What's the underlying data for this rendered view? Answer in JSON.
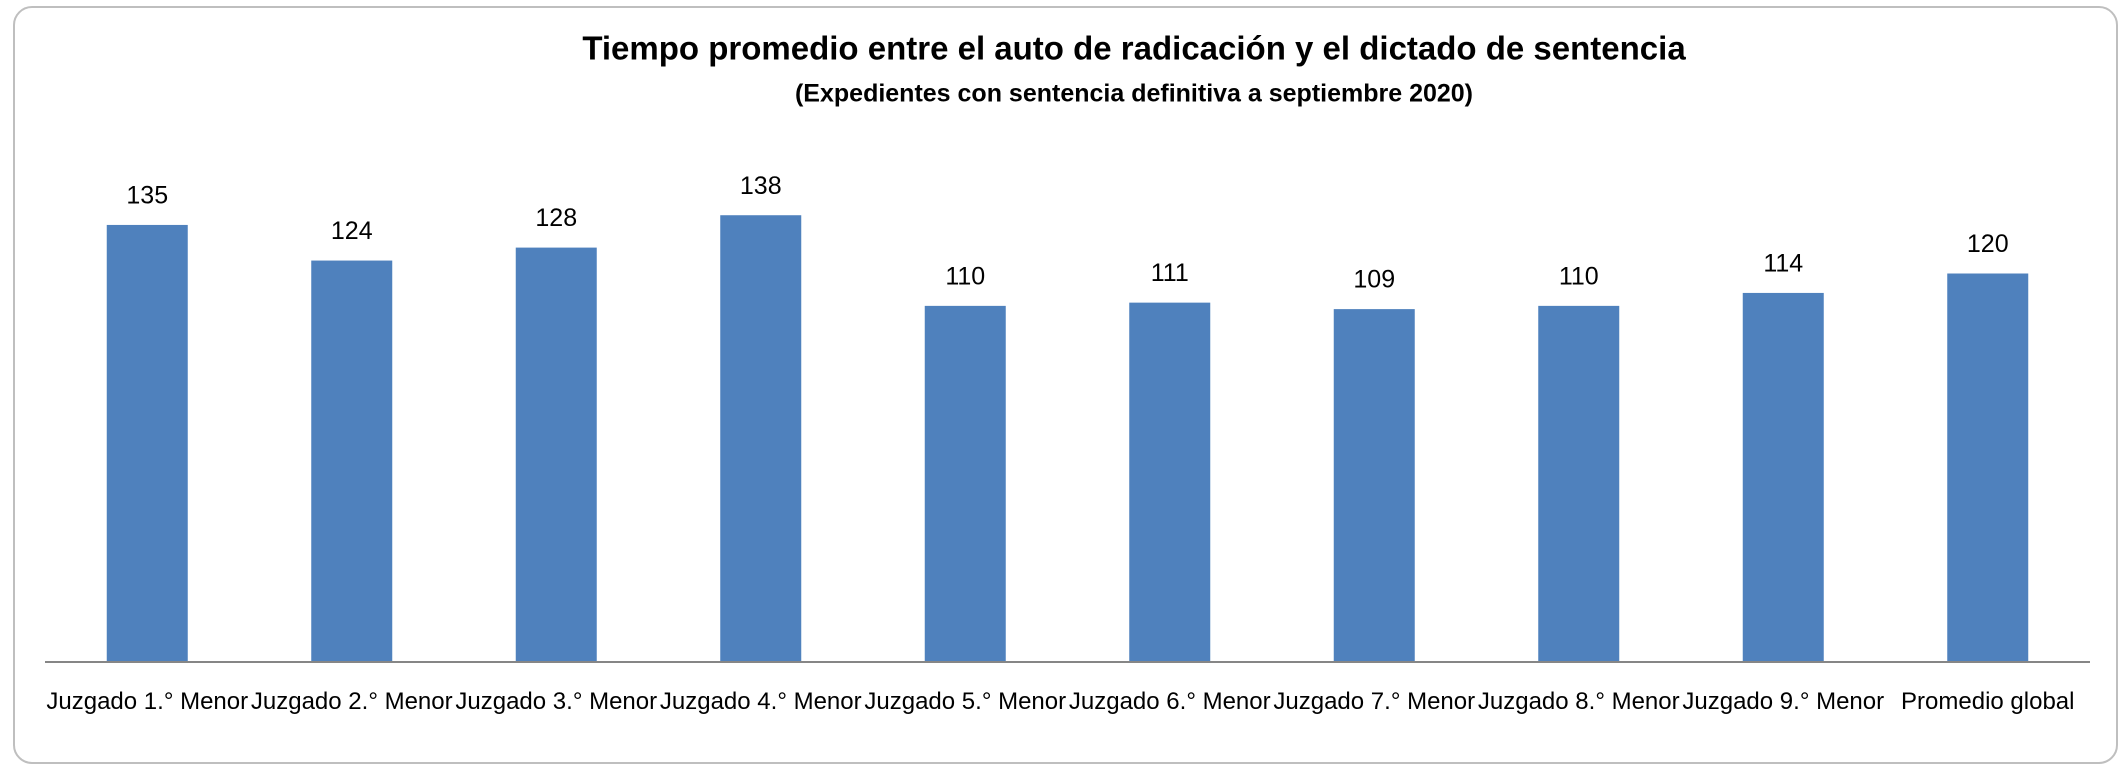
{
  "chart_data": {
    "type": "bar",
    "title": "Tiempo promedio entre el auto de radicación y el dictado de sentencia",
    "subtitle": "(Expedientes con sentencia definitiva a septiembre 2020)",
    "categories": [
      "Juzgado 1.° Menor",
      "Juzgado 2.° Menor",
      "Juzgado 3.° Menor",
      "Juzgado 4.° Menor",
      "Juzgado 5.° Menor",
      "Juzgado 6.° Menor",
      "Juzgado 7.° Menor",
      "Juzgado 8.° Menor",
      "Juzgado 9.° Menor",
      "Promedio global"
    ],
    "values": [
      135,
      124,
      128,
      138,
      110,
      111,
      109,
      110,
      114,
      120
    ],
    "color": "#4f81bd",
    "ylim": [
      0,
      160
    ]
  }
}
